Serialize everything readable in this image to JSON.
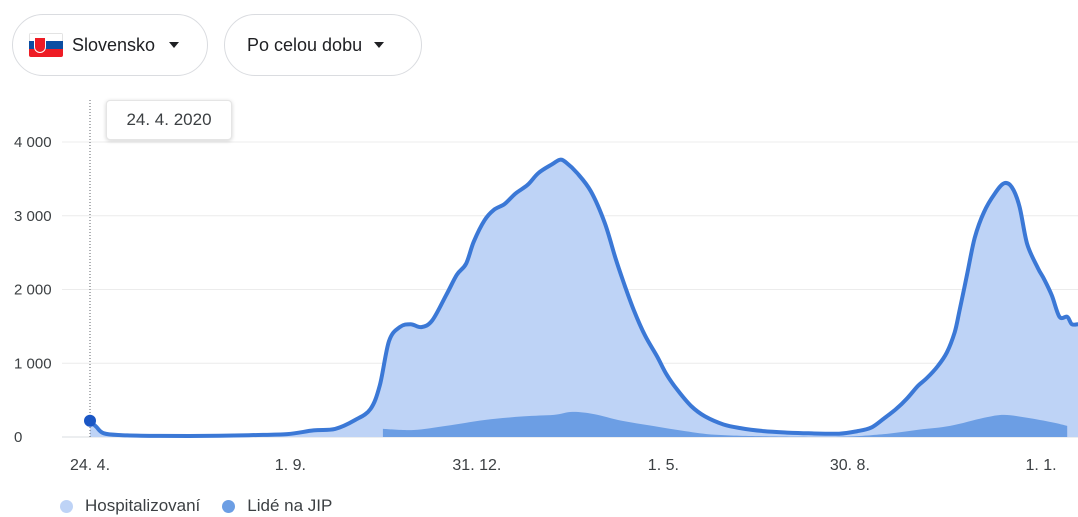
{
  "filters": {
    "country_label": "Slovensko",
    "range_label": "Po celou dobu"
  },
  "tooltip": {
    "date": "24. 4. 2020"
  },
  "colors": {
    "hospitalized_fill": "#bed3f6",
    "hospitalized_line": "#3b78d6",
    "icu_fill": "#6c9ee4",
    "grid": "#ececec",
    "axis_text": "#3c4043",
    "marker": "#1a56c4"
  },
  "chart_data": {
    "type": "area",
    "title": "",
    "xlabel": "",
    "ylabel": "",
    "ylim": [
      0,
      4100
    ],
    "grid": true,
    "legend_position": "bottom-left",
    "y_ticks": [
      {
        "value": 0,
        "label": "0"
      },
      {
        "value": 1000,
        "label": "1 000"
      },
      {
        "value": 2000,
        "label": "2 000"
      },
      {
        "value": 3000,
        "label": "3 000"
      },
      {
        "value": 4000,
        "label": "4 000"
      }
    ],
    "x_ticks": [
      {
        "date": "2020-04-24",
        "label": "24. 4."
      },
      {
        "date": "2020-09-01",
        "label": "1. 9."
      },
      {
        "date": "2020-12-31",
        "label": "31. 12."
      },
      {
        "date": "2021-05-01",
        "label": "1. 5."
      },
      {
        "date": "2021-08-30",
        "label": "30. 8."
      },
      {
        "date": "2022-01-01",
        "label": "1. 1."
      }
    ],
    "x_range": [
      "2020-04-24",
      "2022-01-25"
    ],
    "series": [
      {
        "name": "Hospitalizovaní",
        "points": [
          [
            "2020-04-24",
            220
          ],
          [
            "2020-04-28",
            140
          ],
          [
            "2020-05-03",
            50
          ],
          [
            "2020-05-15",
            25
          ],
          [
            "2020-06-08",
            15
          ],
          [
            "2020-07-07",
            15
          ],
          [
            "2020-08-05",
            25
          ],
          [
            "2020-08-30",
            40
          ],
          [
            "2020-09-16",
            90
          ],
          [
            "2020-09-30",
            110
          ],
          [
            "2020-10-13",
            230
          ],
          [
            "2020-10-23",
            380
          ],
          [
            "2020-10-29",
            700
          ],
          [
            "2020-11-04",
            1300
          ],
          [
            "2020-11-11",
            1490
          ],
          [
            "2020-11-18",
            1530
          ],
          [
            "2020-11-25",
            1490
          ],
          [
            "2020-12-02",
            1580
          ],
          [
            "2020-12-11",
            1920
          ],
          [
            "2020-12-18",
            2200
          ],
          [
            "2020-12-24",
            2350
          ],
          [
            "2020-12-29",
            2650
          ],
          [
            "2021-01-05",
            2940
          ],
          [
            "2021-01-11",
            3080
          ],
          [
            "2021-01-18",
            3160
          ],
          [
            "2021-01-25",
            3300
          ],
          [
            "2021-02-02",
            3420
          ],
          [
            "2021-02-09",
            3580
          ],
          [
            "2021-02-18",
            3700
          ],
          [
            "2021-02-23",
            3760
          ],
          [
            "2021-02-27",
            3720
          ],
          [
            "2021-03-06",
            3580
          ],
          [
            "2021-03-15",
            3330
          ],
          [
            "2021-03-24",
            2900
          ],
          [
            "2021-03-31",
            2420
          ],
          [
            "2021-04-06",
            2050
          ],
          [
            "2021-04-12",
            1710
          ],
          [
            "2021-04-19",
            1380
          ],
          [
            "2021-04-27",
            1090
          ],
          [
            "2021-05-03",
            850
          ],
          [
            "2021-05-10",
            640
          ],
          [
            "2021-05-19",
            420
          ],
          [
            "2021-05-28",
            280
          ],
          [
            "2021-06-09",
            170
          ],
          [
            "2021-06-20",
            120
          ],
          [
            "2021-07-05",
            80
          ],
          [
            "2021-07-20",
            60
          ],
          [
            "2021-08-03",
            50
          ],
          [
            "2021-08-23",
            45
          ],
          [
            "2021-09-04",
            80
          ],
          [
            "2021-09-13",
            130
          ],
          [
            "2021-09-21",
            250
          ],
          [
            "2021-09-29",
            380
          ],
          [
            "2021-10-06",
            520
          ],
          [
            "2021-10-13",
            690
          ],
          [
            "2021-10-19",
            800
          ],
          [
            "2021-10-26",
            960
          ],
          [
            "2021-11-01",
            1150
          ],
          [
            "2021-11-06",
            1420
          ],
          [
            "2021-11-09",
            1700
          ],
          [
            "2021-11-14",
            2200
          ],
          [
            "2021-11-19",
            2700
          ],
          [
            "2021-11-25",
            3050
          ],
          [
            "2021-12-02",
            3300
          ],
          [
            "2021-12-08",
            3440
          ],
          [
            "2021-12-13",
            3390
          ],
          [
            "2021-12-18",
            3130
          ],
          [
            "2021-12-23",
            2620
          ],
          [
            "2021-12-30",
            2290
          ],
          [
            "2022-01-03",
            2140
          ],
          [
            "2022-01-08",
            1920
          ],
          [
            "2022-01-13",
            1630
          ],
          [
            "2022-01-18",
            1630
          ],
          [
            "2022-01-21",
            1530
          ],
          [
            "2022-01-25",
            1530
          ]
        ]
      },
      {
        "name": "Lidé na JIP",
        "points": [
          [
            "2020-10-31",
            110
          ],
          [
            "2020-11-20",
            95
          ],
          [
            "2020-12-11",
            150
          ],
          [
            "2021-01-05",
            230
          ],
          [
            "2021-01-30",
            280
          ],
          [
            "2021-02-19",
            300
          ],
          [
            "2021-03-03",
            340
          ],
          [
            "2021-03-17",
            310
          ],
          [
            "2021-04-04",
            220
          ],
          [
            "2021-04-24",
            150
          ],
          [
            "2021-05-15",
            80
          ],
          [
            "2021-06-04",
            30
          ],
          [
            "2021-07-05",
            10
          ],
          [
            "2021-08-24",
            5
          ],
          [
            "2021-09-21",
            40
          ],
          [
            "2021-10-14",
            100
          ],
          [
            "2021-11-03",
            150
          ],
          [
            "2021-11-25",
            260
          ],
          [
            "2021-12-08",
            300
          ],
          [
            "2021-12-23",
            260
          ],
          [
            "2022-01-08",
            200
          ],
          [
            "2022-01-18",
            150
          ]
        ]
      }
    ]
  }
}
